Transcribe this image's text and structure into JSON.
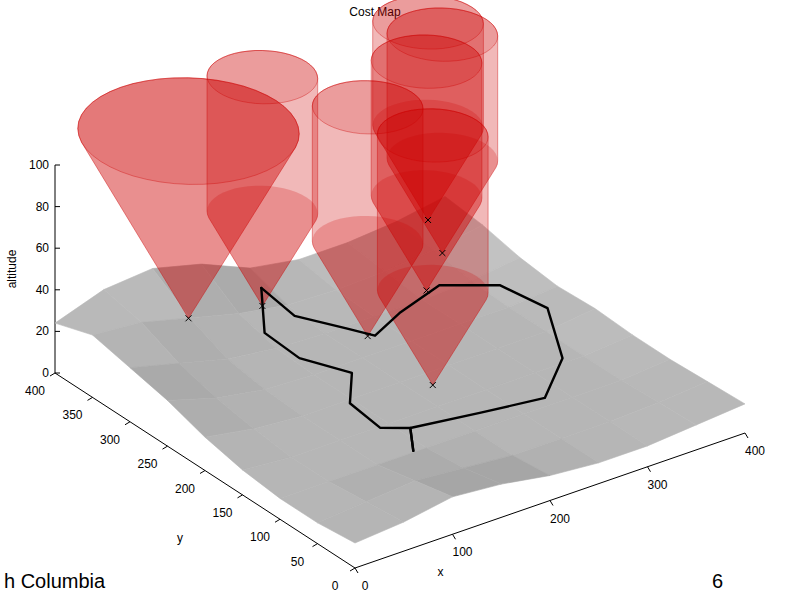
{
  "chart_data": {
    "type": "surface3d",
    "title": "Cost Map",
    "x_label": "x",
    "y_label": "y",
    "z_label": "altitude",
    "xlim": [
      0,
      400
    ],
    "ylim": [
      0,
      400
    ],
    "zlim": [
      0,
      100
    ],
    "xticks": [
      0,
      100,
      200,
      300,
      400
    ],
    "yticks": [
      0,
      50,
      100,
      150,
      200,
      250,
      300,
      350,
      400
    ],
    "zticks": [
      0,
      20,
      40,
      60,
      80,
      100
    ],
    "grid": false,
    "terrain": {
      "color": "#b4b4b4",
      "x": [
        0,
        50,
        100,
        150,
        200,
        250,
        300,
        350,
        400
      ],
      "y": [
        0,
        50,
        100,
        150,
        200,
        250,
        300,
        350,
        400
      ],
      "altitude": [
        [
          12,
          14,
          18,
          16,
          12,
          10,
          10,
          12,
          14
        ],
        [
          10,
          12,
          14,
          12,
          10,
          10,
          10,
          11,
          13
        ],
        [
          10,
          10,
          10,
          10,
          10,
          10,
          10,
          10,
          12
        ],
        [
          12,
          10,
          10,
          10,
          10,
          10,
          10,
          10,
          12
        ],
        [
          16,
          12,
          10,
          10,
          10,
          10,
          10,
          10,
          13
        ],
        [
          22,
          15,
          11,
          10,
          10,
          10,
          10,
          10,
          12
        ],
        [
          26,
          20,
          14,
          11,
          10,
          10,
          10,
          11,
          14
        ],
        [
          30,
          28,
          22,
          16,
          12,
          11,
          12,
          14,
          18
        ],
        [
          24,
          32,
          34,
          28,
          18,
          14,
          14,
          16,
          20
        ]
      ]
    },
    "threats": {
      "color": "#cc0000",
      "marker": "x",
      "x": [
        165,
        183,
        219,
        248,
        265,
        268,
        60
      ],
      "y": [
        338,
        221,
        181,
        227,
        228,
        251,
        300
      ],
      "altitude": [
        20,
        30,
        10,
        40,
        55,
        65,
        40
      ],
      "radius": [
        45,
        45,
        45,
        45,
        45,
        45,
        90
      ],
      "top": [
        130,
        140,
        130,
        150,
        160,
        160,
        130
      ]
    },
    "series": [
      {
        "color": "#000000",
        "line_style": "solid",
        "x": [
          149,
          149,
          129,
          134,
          156,
          136,
          128,
          140
        ],
        "y": [
          116,
          120,
          134,
          181,
          207,
          251,
          287,
          307
        ],
        "altitude": [
          5,
          15,
          15,
          15,
          20,
          20,
          25,
          40
        ]
      },
      {
        "color": "#000000",
        "line_style": "solid",
        "x": [
          149,
          149,
          211,
          270,
          312,
          332,
          313,
          273,
          228,
          199,
          187,
          155,
          140
        ],
        "y": [
          116,
          120,
          108,
          98,
          129,
          175,
          214,
          242,
          237,
          232,
          256,
          282,
          307
        ],
        "altitude": [
          5,
          15,
          15,
          15,
          20,
          30,
          35,
          35,
          30,
          25,
          25,
          30,
          40
        ]
      }
    ]
  },
  "footer": {
    "text": "h Columbia",
    "page_number": 6
  }
}
